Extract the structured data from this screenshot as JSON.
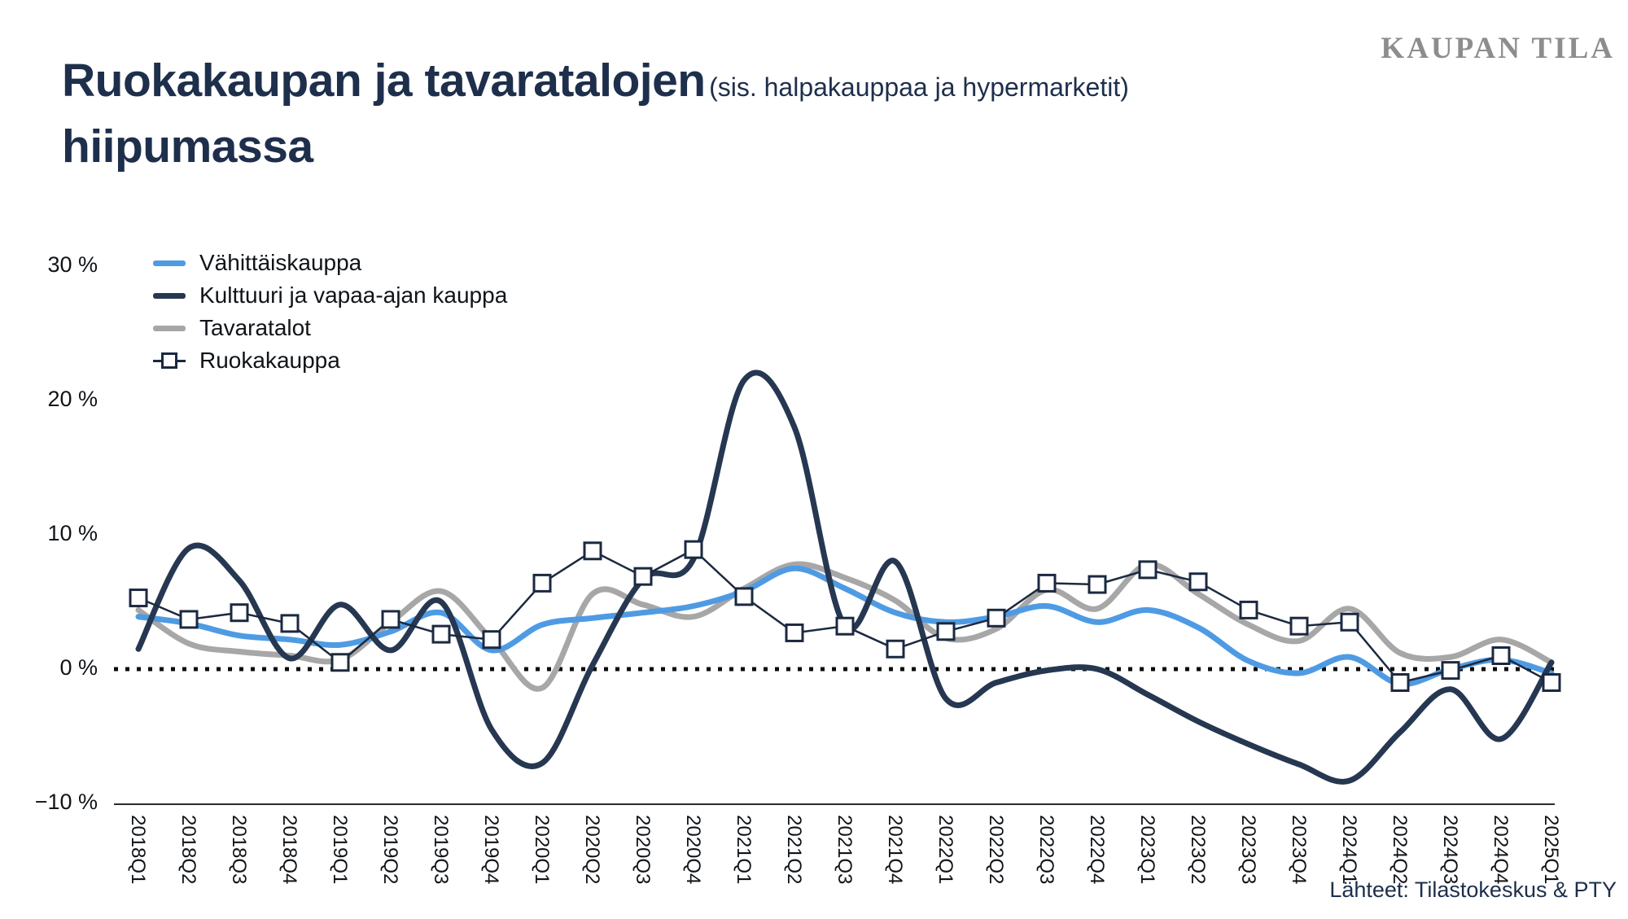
{
  "branding": {
    "logo_text": "KAUPAN TILA"
  },
  "title": {
    "line1_bold": "Ruokakaupan ja tavaratalojen",
    "line1_note": "(sis. halpakauppaa ja hypermarketit)",
    "line2_bold": "hiipumassa"
  },
  "source": "Lähteet: Tilastokeskus & PTY",
  "chart_data": {
    "type": "line",
    "title": "Ruokakaupan ja tavaratalojen (sis. halpakauppaa ja hypermarketit) hiipumassa",
    "xlabel": "",
    "ylabel": "%",
    "ylim": [
      -10,
      30
    ],
    "grid": false,
    "zero_line_dotted": true,
    "legend_position": "top-left",
    "y_ticks": [
      {
        "label": "30 %",
        "value": 30
      },
      {
        "label": "20 %",
        "value": 20
      },
      {
        "label": "10 %",
        "value": 10
      },
      {
        "label": "0 %",
        "value": 0
      },
      {
        "label": "−10 %",
        "value": -10
      }
    ],
    "categories": [
      "2018Q1",
      "2018Q2",
      "2018Q3",
      "2018Q4",
      "2019Q1",
      "2019Q2",
      "2019Q3",
      "2019Q4",
      "2020Q1",
      "2020Q2",
      "2020Q3",
      "2020Q4",
      "2021Q1",
      "2021Q2",
      "2021Q3",
      "2021Q4",
      "2022Q1",
      "2022Q2",
      "2022Q3",
      "2022Q4",
      "2023Q1",
      "2023Q2",
      "2023Q3",
      "2023Q4",
      "2024Q1",
      "2024Q2",
      "2024Q3",
      "2024Q4",
      "2025Q1"
    ],
    "series": [
      {
        "name": "Vähittäiskauppa",
        "color": "#4f9be3",
        "line_style": "smooth",
        "line_width": 7,
        "markers": "none",
        "z": 1,
        "values": [
          3.9,
          3.4,
          2.5,
          2.2,
          1.8,
          2.8,
          4.2,
          1.4,
          3.3,
          3.8,
          4.2,
          4.7,
          5.8,
          7.5,
          6.0,
          4.2,
          3.5,
          3.9,
          4.7,
          3.5,
          4.4,
          3.1,
          0.6,
          -0.3,
          0.9,
          -1.1,
          0.0,
          0.7,
          -0.3
        ]
      },
      {
        "name": "Kulttuuri ja vapaa-ajan kauppa",
        "color": "#263751",
        "line_style": "smooth",
        "line_width": 7,
        "markers": "none",
        "z": 2,
        "values": [
          1.5,
          9.0,
          6.6,
          0.8,
          4.8,
          1.4,
          5.0,
          -4.5,
          -7.0,
          0.3,
          6.7,
          8.2,
          21.5,
          18.0,
          3.2,
          8.0,
          -2.2,
          -1.0,
          -0.1,
          0.0,
          -1.9,
          -3.9,
          -5.6,
          -7.1,
          -8.3,
          -4.7,
          -1.5,
          -5.2,
          0.5
        ]
      },
      {
        "name": "Tavaratalot",
        "color": "#a7a7a7",
        "line_style": "smooth",
        "line_width": 7,
        "markers": "none",
        "z": 0,
        "values": [
          4.4,
          1.9,
          1.3,
          1.0,
          0.7,
          3.5,
          5.8,
          2.2,
          -1.4,
          5.6,
          4.8,
          3.9,
          6.0,
          7.8,
          6.8,
          5.1,
          2.3,
          3.0,
          5.9,
          4.5,
          7.8,
          5.6,
          3.3,
          2.1,
          4.5,
          1.2,
          0.9,
          2.2,
          0.5
        ]
      },
      {
        "name": "Ruokakauppa",
        "color": "#1b2940",
        "line_style": "linear",
        "line_width": 2.5,
        "markers": "square",
        "z": 3,
        "values": [
          5.3,
          3.7,
          4.2,
          3.4,
          0.5,
          3.7,
          2.6,
          2.2,
          6.4,
          8.8,
          6.9,
          8.9,
          5.4,
          2.7,
          3.2,
          1.5,
          2.8,
          3.8,
          6.4,
          6.3,
          7.4,
          6.5,
          4.4,
          3.2,
          3.5,
          -1.0,
          -0.1,
          1.0,
          -1.0
        ]
      }
    ]
  }
}
